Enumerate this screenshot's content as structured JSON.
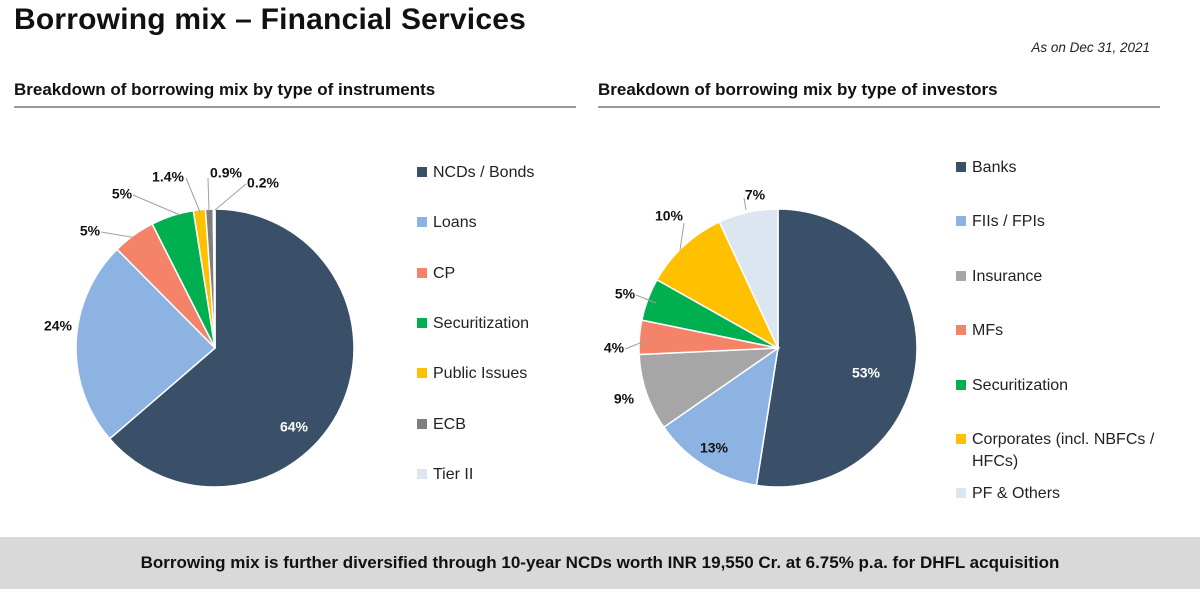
{
  "page": {
    "title": "Borrowing mix – Financial Services",
    "as_on": "As on Dec 31, 2021",
    "footer": "Borrowing mix is further diversified through 10-year NCDs worth INR 19,550 Cr. at 6.75% p.a. for DHFL acquisition"
  },
  "chart_data": [
    {
      "type": "pie",
      "title": "Breakdown of borrowing mix by type of instruments",
      "categories": [
        "NCDs / Bonds",
        "Loans",
        "CP",
        "Securitization",
        "Public Issues",
        "ECB",
        "Tier II"
      ],
      "values": [
        64,
        24,
        5,
        5,
        1.4,
        0.9,
        0.2
      ],
      "labels": [
        "64%",
        "24%",
        "5%",
        "5%",
        "1.4%",
        "0.9%",
        "0.2%"
      ],
      "colors": [
        "#3a5068",
        "#8db3e2",
        "#f4836a",
        "#00b050",
        "#ffc000",
        "#7f7f7f",
        "#dce6f1"
      ],
      "legend_position": "right"
    },
    {
      "type": "pie",
      "title": "Breakdown of borrowing mix by type of investors",
      "categories": [
        "Banks",
        "FIIs / FPIs",
        "Insurance",
        "MFs",
        "Securitization",
        "Corporates (incl. NBFCs / HFCs)",
        "PF & Others"
      ],
      "legend_lines": [
        [
          "Banks"
        ],
        [
          "FIIs / FPIs"
        ],
        [
          "Insurance"
        ],
        [
          "MFs"
        ],
        [
          "Securitization"
        ],
        [
          "Corporates (incl. NBFCs /",
          "HFCs)"
        ],
        [
          "PF & Others"
        ]
      ],
      "values": [
        53,
        13,
        9,
        4,
        5,
        10,
        7
      ],
      "labels": [
        "53%",
        "13%",
        "9%",
        "4%",
        "5%",
        "10%",
        "7%"
      ],
      "colors": [
        "#3a5068",
        "#8db3e2",
        "#a6a6a6",
        "#f4836a",
        "#00b050",
        "#ffc000",
        "#dce6f1"
      ],
      "legend_position": "right"
    }
  ]
}
